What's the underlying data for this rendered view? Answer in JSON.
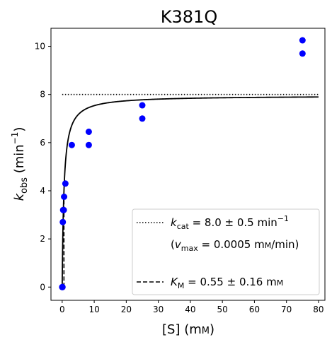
{
  "chart_data": {
    "type": "scatter",
    "title": "K381Q",
    "xlabel_main": "[S] (m",
    "xlabel_unit_sc": "M",
    "xlabel_close": ")",
    "ylabel_main": "k",
    "ylabel_sub": "obs",
    "ylabel_rest": " (min",
    "ylabel_sup": "−1",
    "ylabel_close": ")",
    "xlim": [
      -3.5,
      82
    ],
    "ylim": [
      -0.55,
      10.75
    ],
    "xticks": [
      0,
      10,
      20,
      30,
      40,
      50,
      60,
      70,
      80
    ],
    "yticks": [
      0,
      2,
      4,
      6,
      8,
      10
    ],
    "grid": false,
    "legend_position": "lower right",
    "series": [
      {
        "kind": "points",
        "color": "#0000ff",
        "x": [
          0,
          0.1,
          0.2,
          0.3,
          0.5,
          0.6,
          1.0,
          3.0,
          8.3,
          8.3,
          25,
          25,
          75,
          75
        ],
        "y": [
          0.0,
          0.0,
          2.7,
          3.2,
          3.2,
          3.75,
          4.3,
          5.9,
          5.9,
          6.45,
          7.0,
          7.55,
          9.7,
          10.25
        ]
      },
      {
        "kind": "fit",
        "color": "#000000",
        "kcat": 7.95,
        "km": 0.55,
        "x_range": [
          0,
          80
        ]
      },
      {
        "kind": "kcat-line",
        "color": "#000000",
        "y": 8.0,
        "x_range": [
          0,
          80
        ]
      },
      {
        "kind": "km-line",
        "color": "#000000",
        "x": 0.55
      }
    ],
    "legend": {
      "kcat_sym": "k",
      "kcat_sub": "cat",
      "kcat_value": " = 8.0 ± 0.5 min",
      "kcat_sup": "−1",
      "vmax_open": "(",
      "vmax_sym": "v",
      "vmax_sub": "max",
      "vmax_value": " = 0.0005 m",
      "vmax_unit_sc": "M",
      "vmax_close": "/min)",
      "km_sym": "K",
      "km_sub": "M",
      "km_value": " = 0.55 ± 0.16 m",
      "km_unit_sc": "M"
    }
  }
}
